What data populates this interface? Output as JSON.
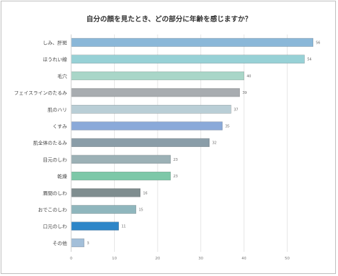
{
  "chart_data": {
    "type": "bar",
    "orientation": "horizontal",
    "title": "自分の顔を見たとき、どの部分に年齢を感じますか？",
    "categories": [
      "しみ、肝斑",
      "ほうれい線",
      "毛穴",
      "フェイスラインのたるみ",
      "肌のハリ",
      "くすみ",
      "肌全体のたるみ",
      "目元のしわ",
      "乾燥",
      "眉間のしわ",
      "おでこのしわ",
      "口元のしわ",
      "その他"
    ],
    "values": [
      56,
      54,
      40,
      39,
      37,
      35,
      32,
      23,
      23,
      16,
      15,
      11,
      3
    ],
    "colors": [
      "#8ab7d8",
      "#97d1d6",
      "#a9d6c8",
      "#a8acb0",
      "#b9ced6",
      "#8aa9d9",
      "#8a9da8",
      "#9cb1b6",
      "#7dc8a8",
      "#7f8d8f",
      "#8fb6bd",
      "#2e86c8",
      "#a3bfd9"
    ],
    "xlim": [
      0,
      56
    ],
    "xticks": [
      0,
      10,
      20,
      30,
      40,
      50
    ],
    "grid": true,
    "xlabel": "",
    "ylabel": ""
  }
}
